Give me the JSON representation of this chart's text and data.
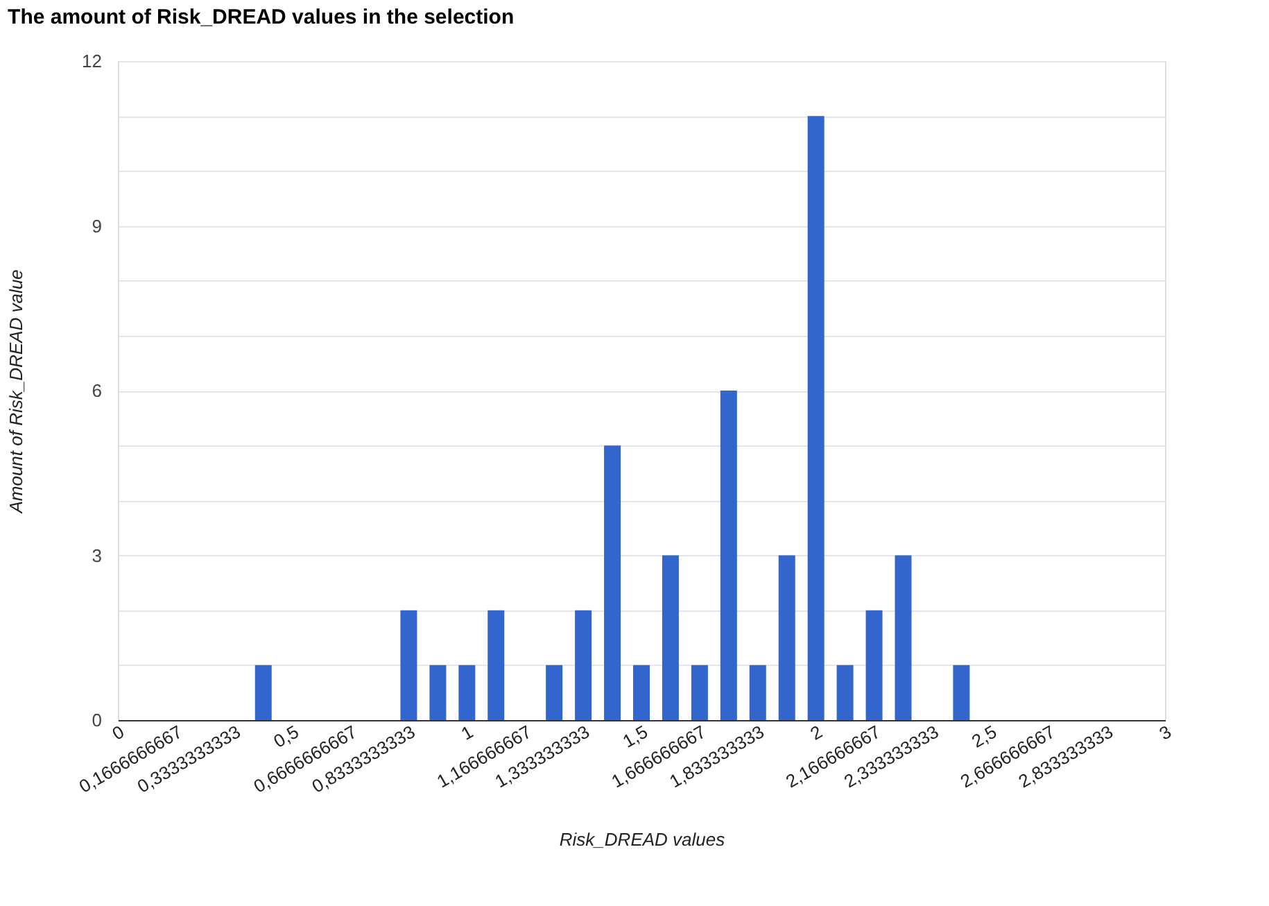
{
  "chart_data": {
    "type": "bar",
    "title": "The amount of Risk_DREAD values in the selection",
    "xlabel": "Risk_DREAD values",
    "ylabel": "Amount of Risk_DREAD value",
    "x": [
      0.4167,
      0.8333,
      0.9167,
      1,
      1.0833,
      1.25,
      1.3333,
      1.4167,
      1.5,
      1.5833,
      1.6667,
      1.75,
      1.8333,
      1.9167,
      2,
      2.0833,
      2.1667,
      2.25,
      2.4167
    ],
    "values": [
      1,
      2,
      1,
      1,
      2,
      1,
      2,
      5,
      1,
      3,
      1,
      6,
      1,
      3,
      11,
      1,
      2,
      3,
      1
    ],
    "color": "#3366cc",
    "xlim": [
      0,
      3
    ],
    "xticks": [
      0,
      {
        "value": 0.1666666667,
        "label": "0,1666666667"
      },
      {
        "value": 0.3333333333,
        "label": "0,3333333333"
      },
      {
        "value": 0.5,
        "label": "0,5"
      },
      {
        "value": 0.6666666667,
        "label": "0,6666666667"
      },
      {
        "value": 0.8333333333,
        "label": "0,8333333333"
      },
      1,
      {
        "value": 1.166666667,
        "label": "1,166666667"
      },
      {
        "value": 1.333333333,
        "label": "1,333333333"
      },
      {
        "value": 1.5,
        "label": "1,5"
      },
      {
        "value": 1.666666667,
        "label": "1,666666667"
      },
      {
        "value": 1.833333333,
        "label": "1,833333333"
      },
      2,
      {
        "value": 2.166666667,
        "label": "2,166666667"
      },
      {
        "value": 2.333333333,
        "label": "2,333333333"
      },
      {
        "value": 2.5,
        "label": "2,5"
      },
      {
        "value": 2.666666667,
        "label": "2,666666667"
      },
      {
        "value": 2.833333333,
        "label": "2,833333333"
      },
      3
    ],
    "ylim": [
      0,
      12
    ],
    "yticks": [
      0,
      {
        "value": 1,
        "label": null
      },
      {
        "value": 2,
        "label": null
      },
      3,
      {
        "value": 4,
        "label": null
      },
      {
        "value": 5,
        "label": null
      },
      6,
      {
        "value": 7,
        "label": null
      },
      {
        "value": 8,
        "label": null
      },
      9,
      {
        "value": 10,
        "label": null
      },
      {
        "value": 11,
        "label": null
      },
      12
    ],
    "grid": "y"
  }
}
